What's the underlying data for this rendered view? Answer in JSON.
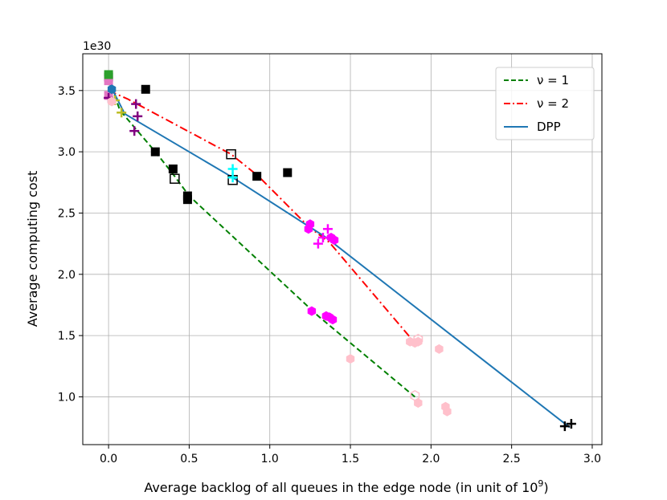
{
  "chart_data": {
    "type": "line",
    "title": "",
    "xlabel": "Average backlog of all queues in the edge node (in unit of 10",
    "xlabel_sup": "9",
    "xlabel_close": ")",
    "ylabel": "Average computing cost",
    "y_multiplier": "1e30",
    "xlim": [
      -0.16,
      3.06
    ],
    "ylim": [
      0.61,
      3.8
    ],
    "xticks": [
      0.0,
      0.5,
      1.0,
      1.5,
      2.0,
      2.5,
      3.0
    ],
    "xtick_labels": [
      "0.0",
      "0.5",
      "1.0",
      "1.5",
      "2.0",
      "2.5",
      "3.0"
    ],
    "yticks": [
      1.0,
      1.5,
      2.0,
      2.5,
      3.0,
      3.5
    ],
    "ytick_labels": [
      "1.0",
      "1.5",
      "2.0",
      "2.5",
      "3.0",
      "3.5"
    ],
    "grid": true,
    "legend_position": "top-right",
    "series": [
      {
        "name": "ν = 1",
        "color": "#008000",
        "style": "dashed",
        "points": [
          [
            0.0,
            3.6
          ],
          [
            0.07,
            3.34
          ],
          [
            0.16,
            3.2
          ],
          [
            0.29,
            3.0
          ],
          [
            0.41,
            2.8
          ],
          [
            0.5,
            2.64
          ],
          [
            1.3,
            1.66
          ],
          [
            1.9,
            1.0
          ]
        ]
      },
      {
        "name": "ν = 2",
        "color": "#ff0000",
        "style": "dashdot",
        "points": [
          [
            0.0,
            3.5
          ],
          [
            0.12,
            3.43
          ],
          [
            0.76,
            2.98
          ],
          [
            0.93,
            2.8
          ],
          [
            1.24,
            2.39
          ],
          [
            1.37,
            2.26
          ],
          [
            1.9,
            1.44
          ]
        ]
      },
      {
        "name": "DPP",
        "color": "#1f77b4",
        "style": "solid",
        "points": [
          [
            0.0,
            3.57
          ],
          [
            0.1,
            3.31
          ],
          [
            0.77,
            2.79
          ],
          [
            1.35,
            2.3
          ],
          [
            2.86,
            0.75
          ]
        ]
      }
    ],
    "scatter": [
      {
        "marker": "square",
        "fill": "#000000",
        "points": [
          [
            0.0,
            3.61
          ],
          [
            0.23,
            3.51
          ],
          [
            0.29,
            3.0
          ],
          [
            0.4,
            2.86
          ],
          [
            0.49,
            2.64
          ],
          [
            0.49,
            2.61
          ],
          [
            0.92,
            2.8
          ],
          [
            1.11,
            2.83
          ]
        ]
      },
      {
        "marker": "square-open",
        "fill": "#000000",
        "points": [
          [
            0.41,
            2.78
          ],
          [
            0.76,
            2.98
          ],
          [
            0.77,
            2.77
          ]
        ]
      },
      {
        "marker": "square",
        "fill": "#e377c2",
        "points": [
          [
            0.0,
            3.58
          ],
          [
            0.0,
            3.46
          ]
        ]
      },
      {
        "marker": "square",
        "fill": "#2ca02c",
        "points": [
          [
            0.0,
            3.63
          ]
        ]
      },
      {
        "marker": "plus",
        "fill": "#800080",
        "points": [
          [
            0.0,
            3.44
          ],
          [
            0.17,
            3.39
          ],
          [
            0.16,
            3.17
          ],
          [
            0.18,
            3.29
          ]
        ]
      },
      {
        "marker": "plus",
        "fill": "#bcbd22",
        "points": [
          [
            0.08,
            3.32
          ],
          [
            0.04,
            3.42
          ]
        ]
      },
      {
        "marker": "plus",
        "fill": "#00ffff",
        "points": [
          [
            0.77,
            2.86
          ],
          [
            0.77,
            2.79
          ]
        ]
      },
      {
        "marker": "plus",
        "fill": "#ff00ff",
        "points": [
          [
            1.3,
            2.25
          ],
          [
            1.33,
            2.3
          ],
          [
            1.36,
            2.37
          ]
        ]
      },
      {
        "marker": "plus",
        "fill": "#000000",
        "points": [
          [
            2.83,
            0.76
          ],
          [
            2.87,
            0.78
          ]
        ]
      },
      {
        "marker": "hexagon",
        "fill": "#ff00ff",
        "points": [
          [
            1.25,
            2.41
          ],
          [
            1.24,
            2.37
          ],
          [
            1.38,
            2.3
          ],
          [
            1.4,
            2.28
          ],
          [
            1.26,
            1.7
          ],
          [
            1.35,
            1.66
          ],
          [
            1.37,
            1.65
          ],
          [
            1.39,
            1.63
          ]
        ]
      },
      {
        "marker": "hexagon",
        "fill": "#ffc0cb",
        "points": [
          [
            1.5,
            1.31
          ],
          [
            1.87,
            1.45
          ],
          [
            1.9,
            1.44
          ],
          [
            1.92,
            1.45
          ],
          [
            1.92,
            0.95
          ],
          [
            2.05,
            1.39
          ],
          [
            2.09,
            0.92
          ],
          [
            2.1,
            0.88
          ],
          [
            0.02,
            3.41
          ]
        ]
      },
      {
        "marker": "hexagon-open",
        "fill": "#ffc0cb",
        "points": [
          [
            1.9,
            1.01
          ],
          [
            1.92,
            1.47
          ]
        ]
      },
      {
        "marker": "hexagon",
        "fill": "#1f77b4",
        "points": [
          [
            0.02,
            3.51
          ]
        ]
      }
    ]
  }
}
